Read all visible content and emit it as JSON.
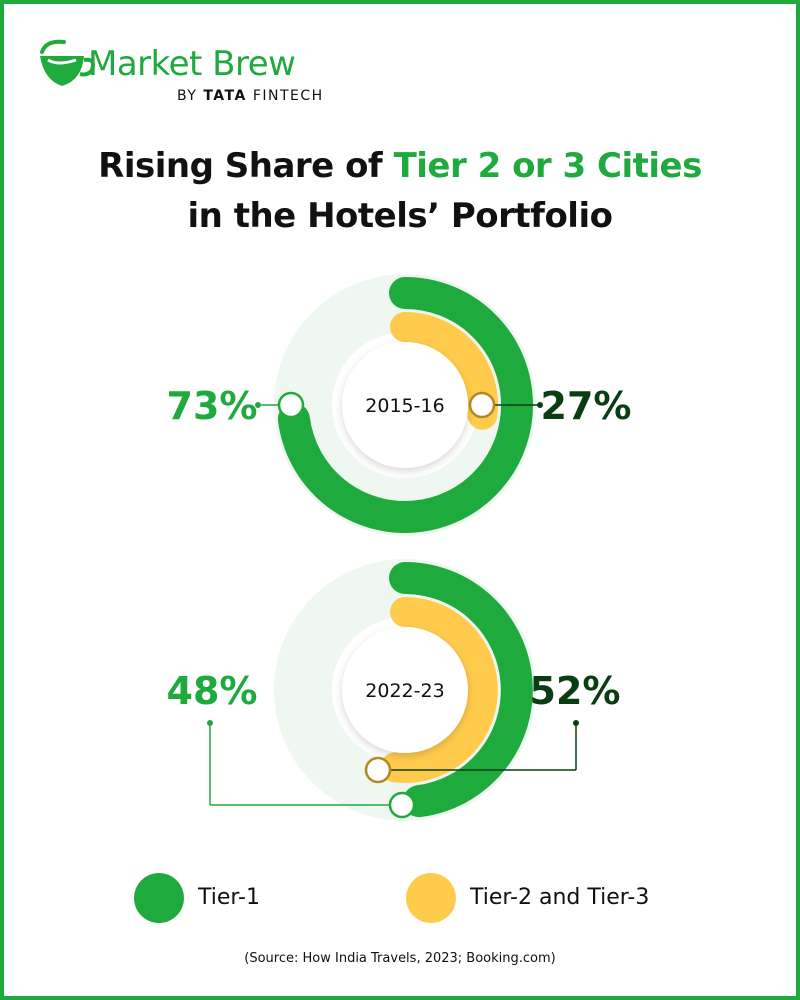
{
  "brand": {
    "name": "Market Brew",
    "byline_prefix": "BY",
    "byline_bold": "TATA",
    "byline_suffix": "FINTECH"
  },
  "title": {
    "line1_prefix": "Rising Share of ",
    "line1_highlight": "Tier 2 or 3 Cities",
    "line2": "in the Hotels’ Portfolio"
  },
  "colors": {
    "tier1": "#1faa3e",
    "tier23": "#ffcb4c",
    "track": "#eef7f0",
    "dark_label": "#0b3d12"
  },
  "chart_data": [
    {
      "type": "pie",
      "center_label": "2015-16",
      "series": [
        {
          "name": "Tier-1",
          "value": 73,
          "label": "73%"
        },
        {
          "name": "Tier-2 and Tier-3",
          "value": 27,
          "label": "27%"
        }
      ]
    },
    {
      "type": "pie",
      "center_label": "2022-23",
      "series": [
        {
          "name": "Tier-1",
          "value": 48,
          "label": "48%"
        },
        {
          "name": "Tier-2 and Tier-3",
          "value": 52,
          "label": "52%"
        }
      ]
    }
  ],
  "legend": [
    {
      "label": "Tier-1",
      "color": "#1faa3e"
    },
    {
      "label": "Tier-2 and Tier-3",
      "color": "#ffcb4c"
    }
  ],
  "source": "(Source: How India Travels, 2023; Booking.com)"
}
